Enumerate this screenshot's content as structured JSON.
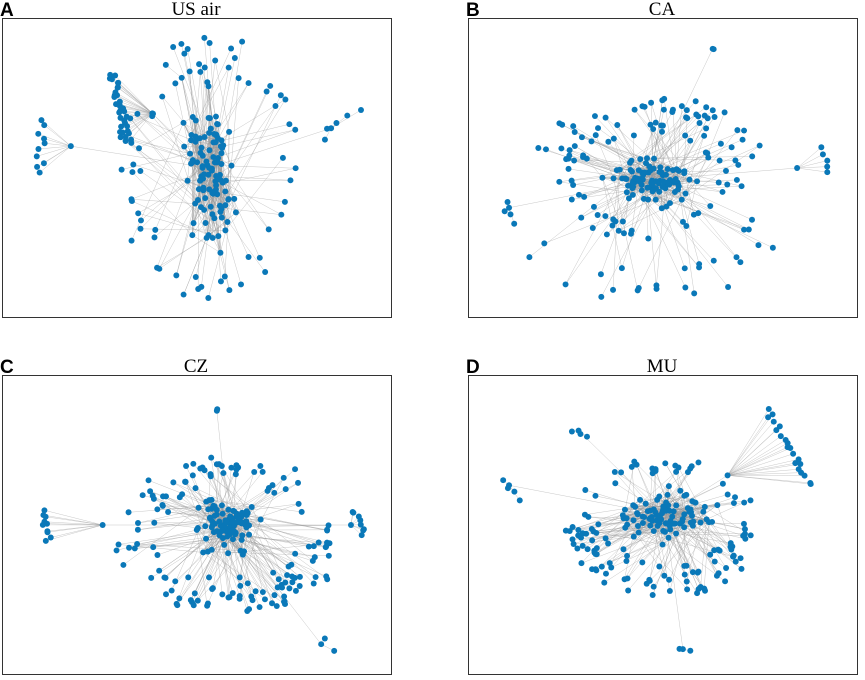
{
  "node_color": "#0a78b8",
  "edge_color": "#9a9a9a",
  "panels": [
    {
      "letter": "A",
      "title": "US air"
    },
    {
      "letter": "B",
      "title": "CA"
    },
    {
      "letter": "C",
      "title": "CZ"
    },
    {
      "letter": "D",
      "title": "MU"
    }
  ]
}
